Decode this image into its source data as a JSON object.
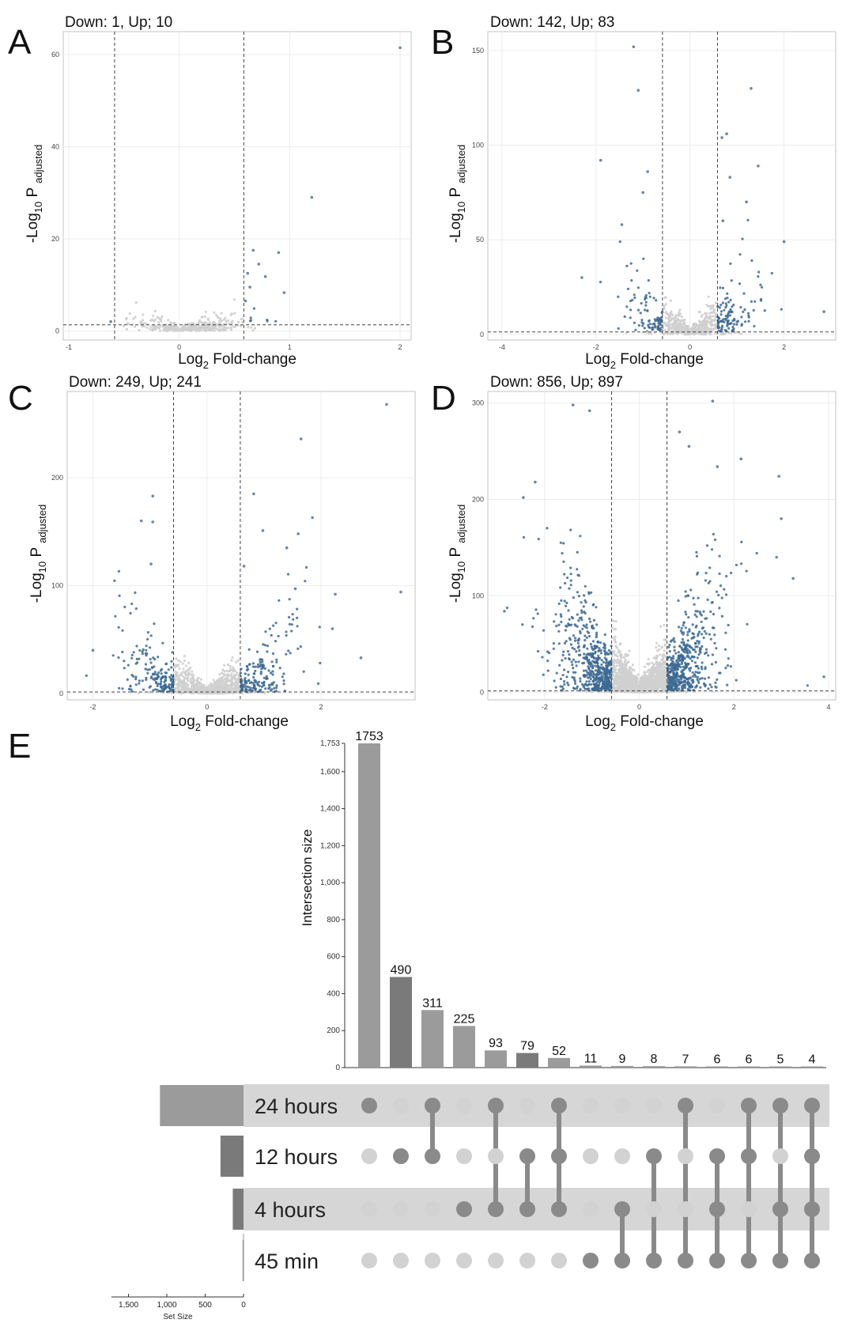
{
  "chart_data": [
    {
      "type": "scatter",
      "panel": "A",
      "title": "Down: 1, Up; 10",
      "xlabel": "Log2 Fold-change",
      "ylabel": "-Log10 P adjusted",
      "xlim": [
        -1.05,
        2.1
      ],
      "ylim": [
        -2,
        65
      ],
      "xticks": [
        -1,
        0,
        1,
        2
      ],
      "yticks": [
        0,
        20,
        40,
        60
      ],
      "thresholds": {
        "fc": [
          -0.585,
          0.585
        ],
        "p": 1.3
      },
      "points": [
        {
          "x": 2.0,
          "y": 61.5,
          "sig": true
        },
        {
          "x": 1.2,
          "y": 29,
          "sig": true
        },
        {
          "x": 0.67,
          "y": 17.5,
          "sig": true
        },
        {
          "x": 0.9,
          "y": 17,
          "sig": true
        },
        {
          "x": 0.72,
          "y": 14.5,
          "sig": true
        },
        {
          "x": 0.78,
          "y": 11.8,
          "sig": true
        },
        {
          "x": 0.64,
          "y": 9.5,
          "sig": true
        },
        {
          "x": 0.95,
          "y": 8.3,
          "sig": true
        },
        {
          "x": 0.62,
          "y": 12.5,
          "sig": true
        },
        {
          "x": 0.6,
          "y": 6.5,
          "sig": true
        },
        {
          "x": -0.62,
          "y": 2.0,
          "sig": true
        }
      ],
      "cloud": {
        "seed": 11,
        "n": 380,
        "xc": 0.1,
        "xs": 0.25,
        "ys": 1.5,
        "grow": 4
      }
    },
    {
      "type": "scatter",
      "panel": "B",
      "title": "Down: 142, Up; 83",
      "xlabel": "Log2 Fold-change",
      "ylabel": "-Log10 P adjusted",
      "xlim": [
        -4.3,
        3.1
      ],
      "ylim": [
        -3,
        160
      ],
      "xticks": [
        -4,
        -2,
        0,
        2
      ],
      "yticks": [
        0,
        50,
        100,
        150
      ],
      "thresholds": {
        "fc": [
          -0.585,
          0.585
        ],
        "p": 1.3
      },
      "points": [
        {
          "x": -1.2,
          "y": 152,
          "sig": true
        },
        {
          "x": -1.1,
          "y": 129,
          "sig": true
        },
        {
          "x": 1.3,
          "y": 130,
          "sig": true
        },
        {
          "x": 0.78,
          "y": 106,
          "sig": true
        },
        {
          "x": 0.68,
          "y": 104,
          "sig": true
        },
        {
          "x": -1.9,
          "y": 92,
          "sig": true
        },
        {
          "x": 1.45,
          "y": 89,
          "sig": true
        },
        {
          "x": -0.9,
          "y": 86,
          "sig": true
        },
        {
          "x": 0.85,
          "y": 83,
          "sig": true
        },
        {
          "x": 1.2,
          "y": 70,
          "sig": true
        },
        {
          "x": -1.45,
          "y": 58,
          "sig": true
        },
        {
          "x": 2.0,
          "y": 49,
          "sig": true
        },
        {
          "x": -2.3,
          "y": 30,
          "sig": true
        },
        {
          "x": 2.85,
          "y": 12,
          "sig": true
        },
        {
          "x": -1.0,
          "y": 75,
          "sig": true
        },
        {
          "x": 0.7,
          "y": 60,
          "sig": true
        }
      ],
      "cloud": {
        "seed": 23,
        "n": 700,
        "xc": 0.0,
        "xs": 0.6,
        "ys": 5,
        "grow": 14
      }
    },
    {
      "type": "scatter",
      "panel": "C",
      "title": "Down: 249, Up; 241",
      "xlabel": "Log2 Fold-change",
      "ylabel": "-Log10 P adjusted",
      "xlim": [
        -2.45,
        3.65
      ],
      "ylim": [
        -6,
        280
      ],
      "xticks": [
        -2,
        0,
        2
      ],
      "yticks": [
        0,
        100,
        200
      ],
      "thresholds": {
        "fc": [
          -0.585,
          0.585
        ],
        "p": 1.3
      },
      "points": [
        {
          "x": 3.15,
          "y": 268,
          "sig": true
        },
        {
          "x": 1.65,
          "y": 236,
          "sig": true
        },
        {
          "x": 0.82,
          "y": 185,
          "sig": true
        },
        {
          "x": -0.95,
          "y": 183,
          "sig": true
        },
        {
          "x": 1.85,
          "y": 163,
          "sig": true
        },
        {
          "x": -1.15,
          "y": 160,
          "sig": true
        },
        {
          "x": -0.95,
          "y": 159,
          "sig": true
        },
        {
          "x": 0.98,
          "y": 151,
          "sig": true
        },
        {
          "x": 1.6,
          "y": 148,
          "sig": true
        },
        {
          "x": 1.4,
          "y": 135,
          "sig": true
        },
        {
          "x": -0.98,
          "y": 120,
          "sig": true
        },
        {
          "x": 1.55,
          "y": 97,
          "sig": true
        },
        {
          "x": 2.25,
          "y": 92,
          "sig": true
        },
        {
          "x": 3.4,
          "y": 94,
          "sig": true
        },
        {
          "x": 0.65,
          "y": 118,
          "sig": true
        },
        {
          "x": -2.0,
          "y": 40,
          "sig": true
        },
        {
          "x": 2.2,
          "y": 60,
          "sig": true
        },
        {
          "x": 2.7,
          "y": 33,
          "sig": true
        }
      ],
      "cloud": {
        "seed": 37,
        "n": 1100,
        "xc": 0.0,
        "xs": 0.65,
        "ys": 8,
        "grow": 22
      }
    },
    {
      "type": "scatter",
      "panel": "D",
      "title": "Down: 856, Up; 897",
      "xlabel": "Log2 Fold-change",
      "ylabel": "-Log10 P adjusted",
      "xlim": [
        -3.2,
        4.15
      ],
      "ylim": [
        -8,
        312
      ],
      "xticks": [
        -2,
        0,
        2,
        4
      ],
      "yticks": [
        0,
        100,
        200,
        300
      ],
      "thresholds": {
        "fc": [
          -0.585,
          0.585
        ],
        "p": 1.3
      },
      "points": [
        {
          "x": -1.4,
          "y": 298,
          "sig": true
        },
        {
          "x": -1.05,
          "y": 292,
          "sig": true
        },
        {
          "x": 1.55,
          "y": 302,
          "sig": true
        },
        {
          "x": 0.85,
          "y": 270,
          "sig": true
        },
        {
          "x": 2.15,
          "y": 242,
          "sig": true
        },
        {
          "x": 2.95,
          "y": 224,
          "sig": true
        },
        {
          "x": -2.45,
          "y": 202,
          "sig": true
        },
        {
          "x": 1.65,
          "y": 234,
          "sig": true
        },
        {
          "x": 3.0,
          "y": 180,
          "sig": true
        },
        {
          "x": 2.9,
          "y": 140,
          "sig": true
        },
        {
          "x": 3.25,
          "y": 118,
          "sig": true
        },
        {
          "x": -2.85,
          "y": 84,
          "sig": true
        },
        {
          "x": 3.9,
          "y": 16,
          "sig": true
        },
        {
          "x": -2.2,
          "y": 218,
          "sig": true
        },
        {
          "x": 1.05,
          "y": 255,
          "sig": true
        }
      ],
      "cloud": {
        "seed": 53,
        "n": 2600,
        "xc": 0.0,
        "xs": 0.75,
        "ys": 14,
        "grow": 34
      }
    },
    {
      "type": "upset",
      "panel": "E",
      "ylabel": "Intersection size",
      "ylim": [
        0,
        1753
      ],
      "yticks": [
        0,
        200,
        400,
        600,
        800,
        "1,000",
        "1,200",
        "1,400",
        "1,600",
        "1,753"
      ],
      "ytick_values": [
        0,
        200,
        400,
        600,
        800,
        1000,
        1200,
        1400,
        1600,
        1753
      ],
      "sets": [
        {
          "name": "24 hours",
          "size": 1090,
          "shaded": true
        },
        {
          "name": "12 hours",
          "size": 300,
          "shaded": false
        },
        {
          "name": "4 hours",
          "size": 140,
          "shaded": true
        },
        {
          "name": "45 min",
          "size": 11,
          "shaded": false
        }
      ],
      "intersections": [
        {
          "size": 1753,
          "label": "1753",
          "members": [
            0
          ]
        },
        {
          "size": 490,
          "label": "490",
          "members": [
            1
          ]
        },
        {
          "size": 311,
          "label": "311",
          "members": [
            0,
            1
          ]
        },
        {
          "size": 225,
          "label": "225",
          "members": [
            2
          ]
        },
        {
          "size": 93,
          "label": "93",
          "members": [
            0,
            2
          ]
        },
        {
          "size": 79,
          "label": "79",
          "members": [
            1,
            2
          ]
        },
        {
          "size": 52,
          "label": "52",
          "members": [
            0,
            1,
            2
          ]
        },
        {
          "size": 11,
          "label": "11",
          "members": [
            3
          ]
        },
        {
          "size": 9,
          "label": "9",
          "members": [
            2,
            3
          ]
        },
        {
          "size": 8,
          "label": "8",
          "members": [
            1,
            3
          ]
        },
        {
          "size": 7,
          "label": "7",
          "members": [
            0,
            3
          ]
        },
        {
          "size": 6,
          "label": "6",
          "members": [
            1,
            2,
            3
          ]
        },
        {
          "size": 6,
          "label": "6",
          "members": [
            0,
            1,
            3
          ]
        },
        {
          "size": 5,
          "label": "5",
          "members": [
            0,
            2,
            3
          ]
        },
        {
          "size": 4,
          "label": "4",
          "members": [
            0,
            1,
            2,
            3
          ]
        }
      ],
      "set_size_label": "Set Size",
      "set_size_ticks": [
        "1,500",
        "1,000",
        "500",
        "0"
      ],
      "set_size_tick_values": [
        1500,
        1000,
        500,
        0
      ]
    }
  ],
  "colors": {
    "significant": "#3d6a93",
    "background": "#cfcfcf",
    "bar_light": "#9b9b9b",
    "bar_dark": "#7a7a7a",
    "dot_active": "#8a8a8a",
    "dot_inactive": "#d2d2d2",
    "band": "#d6d6d6"
  }
}
